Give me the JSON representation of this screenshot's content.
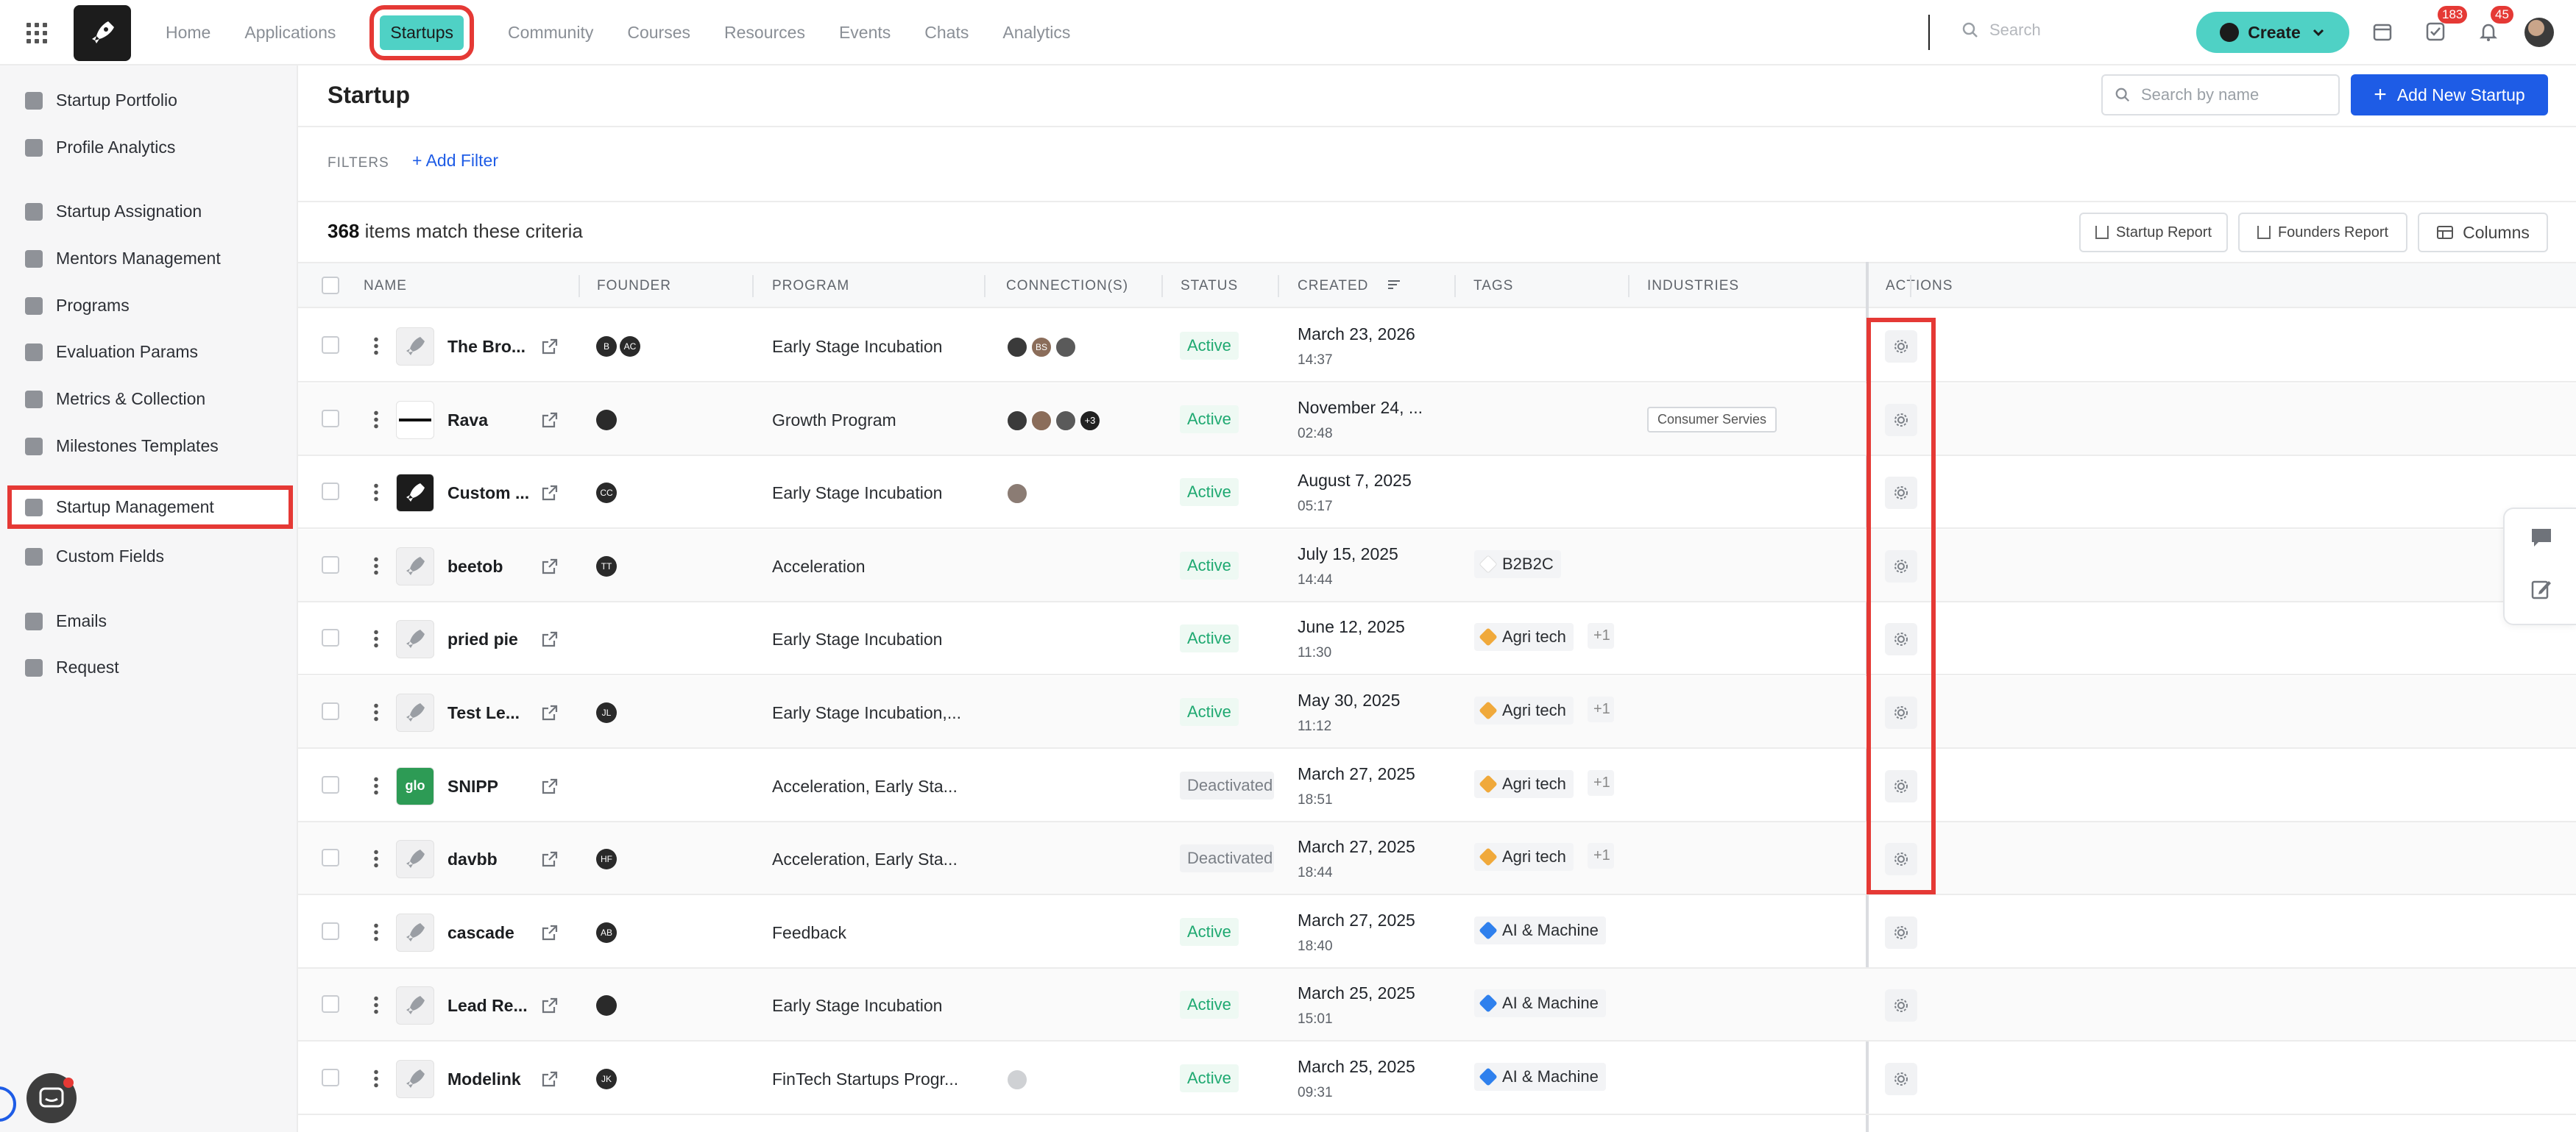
{
  "nav": {
    "items": [
      "Home",
      "Applications",
      "Startups",
      "Community",
      "Courses",
      "Resources",
      "Events",
      "Chats",
      "Analytics"
    ],
    "active": "Startups",
    "search_placeholder": "Search",
    "create_label": "Create",
    "tasks_badge": "183",
    "notifications_badge": "45"
  },
  "sidebar": {
    "items": [
      {
        "label": "Startup Portfolio",
        "icon": "portfolio-icon"
      },
      {
        "label": "Profile Analytics",
        "icon": "bar-chart-icon"
      },
      {
        "label": "Startup Assignation",
        "icon": "assign-icon"
      },
      {
        "label": "Mentors Management",
        "icon": "people-icon"
      },
      {
        "label": "Programs",
        "icon": "rocket-icon"
      },
      {
        "label": "Evaluation Params",
        "icon": "scale-icon"
      },
      {
        "label": "Metrics & Collection",
        "icon": "pie-chart-icon"
      },
      {
        "label": "Milestones Templates",
        "icon": "trophy-icon"
      },
      {
        "label": "Startup Management",
        "icon": "stack-icon",
        "active": true
      },
      {
        "label": "Custom Fields",
        "icon": "fields-icon"
      },
      {
        "label": "Emails",
        "icon": "mail-icon"
      },
      {
        "label": "Request",
        "icon": "clipboard-icon"
      }
    ]
  },
  "page": {
    "title": "Startup",
    "search_placeholder": "Search by name",
    "add_button": "Add New Startup",
    "filters_label": "FILTERS",
    "add_filter": "Add Filter",
    "count": "368",
    "count_suffix": "items match these criteria",
    "startup_report": "Startup Report",
    "founders_report": "Founders Report",
    "columns_button": "Columns"
  },
  "table": {
    "headers": [
      "NAME",
      "FOUNDER",
      "PROGRAM",
      "CONNECTION(S)",
      "STATUS",
      "CREATED",
      "TAGS",
      "INDUSTRIES",
      "ACTIONS"
    ],
    "rows": [
      {
        "name": "The Bro...",
        "thumb": "rocket",
        "founders": [
          "B",
          "AC"
        ],
        "program": "Early Stage Incubation",
        "connections": [
          "",
          "BS",
          ""
        ],
        "status": "Active",
        "date": "March 23, 2026",
        "time": "14:37",
        "tag": "",
        "tag_more": "",
        "industry": ""
      },
      {
        "name": "Rava",
        "thumb": "rava",
        "founders": [
          ""
        ],
        "program": "Growth Program",
        "connections": [
          "",
          "",
          "",
          "+3"
        ],
        "status": "Active",
        "date": "November 24, ...",
        "time": "02:48",
        "tag": "",
        "tag_more": "",
        "industry": "Consumer Servies"
      },
      {
        "name": "Custom ...",
        "thumb": "dark",
        "founders": [
          "CC"
        ],
        "program": "Early Stage Incubation",
        "connections": [
          ""
        ],
        "status": "Active",
        "date": "August 7, 2025",
        "time": "05:17",
        "tag": "",
        "tag_more": "",
        "industry": ""
      },
      {
        "name": "beetob",
        "thumb": "rocket",
        "founders": [
          "TT"
        ],
        "program": "Acceleration",
        "connections": [],
        "status": "Active",
        "date": "July 15, 2025",
        "time": "14:44",
        "tag": "B2B2C",
        "tag_color": "#ffffff",
        "tag_more": "",
        "industry": ""
      },
      {
        "name": "pried pie",
        "thumb": "rocket",
        "founders": [],
        "program": "Early Stage Incubation",
        "connections": [],
        "status": "Active",
        "date": "June 12, 2025",
        "time": "11:30",
        "tag": "Agri tech",
        "tag_color": "#f0a93b",
        "tag_more": "+1",
        "industry": ""
      },
      {
        "name": "Test Le...",
        "thumb": "rocket",
        "founders": [
          "JL"
        ],
        "program": "Early Stage Incubation,...",
        "connections": [],
        "status": "Active",
        "date": "May 30, 2025",
        "time": "11:12",
        "tag": "Agri tech",
        "tag_color": "#f0a93b",
        "tag_more": "+1",
        "industry": ""
      },
      {
        "name": "SNIPP",
        "thumb": "green",
        "thumb_text": "glo",
        "founders": [],
        "program": "Acceleration, Early Sta...",
        "connections": [],
        "status": "Deactivated",
        "date": "March 27, 2025",
        "time": "18:51",
        "tag": "Agri tech",
        "tag_color": "#f0a93b",
        "tag_more": "+1",
        "industry": ""
      },
      {
        "name": "davbb",
        "thumb": "rocket",
        "founders": [
          "HF"
        ],
        "program": "Acceleration, Early Sta...",
        "connections": [],
        "status": "Deactivated",
        "date": "March 27, 2025",
        "time": "18:44",
        "tag": "Agri tech",
        "tag_color": "#f0a93b",
        "tag_more": "+1",
        "industry": ""
      },
      {
        "name": "cascade",
        "thumb": "rocket",
        "founders": [
          "AB"
        ],
        "program": "Feedback",
        "connections": [],
        "status": "Active",
        "date": "March 27, 2025",
        "time": "18:40",
        "tag": "AI & Machine",
        "tag_color": "#2f80ed",
        "tag_more": "",
        "industry": ""
      },
      {
        "name": "Lead Re...",
        "thumb": "rocket",
        "founders": [
          ""
        ],
        "program": "Early Stage Incubation",
        "connections": [],
        "status": "Active",
        "date": "March 25, 2025",
        "time": "15:01",
        "tag": "AI & Machine",
        "tag_color": "#2f80ed",
        "tag_more": "",
        "industry": ""
      },
      {
        "name": "Modelink",
        "thumb": "rocket",
        "founders": [
          "JK"
        ],
        "program": "FinTech Startups Progr...",
        "connections": [
          ""
        ],
        "status": "Active",
        "date": "March 25, 2025",
        "time": "09:31",
        "tag": "AI & Machine",
        "tag_color": "#2f80ed",
        "tag_more": "",
        "industry": ""
      }
    ]
  },
  "colors": {
    "accent": "#4fd1c5",
    "primary": "#1e5ce6",
    "highlight": "#e53935",
    "active_status": "#1fa971"
  }
}
